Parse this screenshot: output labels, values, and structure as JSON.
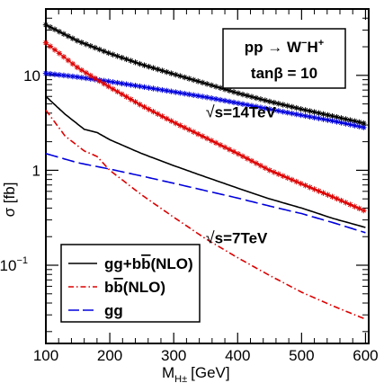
{
  "chart_data": {
    "type": "line",
    "xlabel": "M",
    "xlabel_sub": "H±",
    "xlabel_unit": "[GeV]",
    "ylabel": "σ [fb]",
    "xlim": [
      100,
      605
    ],
    "ylim": [
      0.015,
      50
    ],
    "yscale": "log",
    "x_ticks": [
      "100",
      "200",
      "300",
      "400",
      "500",
      "600"
    ],
    "y_ticks": [
      {
        "value": 10,
        "label": "10"
      },
      {
        "value": 1,
        "label": "1"
      },
      {
        "value": 0.1,
        "label": "10",
        "sup": "−1"
      }
    ],
    "process_box": {
      "line1": "pp → W",
      "line1_sup1": "−",
      "line1_mid": "H",
      "line1_sup2": "+",
      "line2": "tanβ = 10"
    },
    "energy_labels": [
      {
        "root": "√",
        "text": "s=14TeV",
        "x": 350,
        "y": 3.6
      },
      {
        "root": "√",
        "text": "s=7TeV",
        "x": 350,
        "y": 0.17
      }
    ],
    "legend": {
      "placement": "bottom-left",
      "entries": [
        {
          "label": "gg+b",
          "bar": "b",
          "suffix": "(NLO)",
          "style": "solid",
          "color": "#000000"
        },
        {
          "label": "b",
          "bar": "b",
          "suffix": "(NLO)",
          "style": "dashdot",
          "color": "#dd0000"
        },
        {
          "label": "gg",
          "bar": "",
          "suffix": "",
          "style": "dashed",
          "color": "#0000dd"
        }
      ]
    },
    "series": [
      {
        "key": "tot14",
        "color": "#000000",
        "style": "solid-marker",
        "marker": "star",
        "x": [
          100,
          150,
          200,
          250,
          300,
          350,
          400,
          450,
          500,
          550,
          600
        ],
        "y": [
          34,
          23,
          17,
          13,
          10.3,
          8.2,
          6.5,
          5.3,
          4.4,
          3.7,
          3.1
        ]
      },
      {
        "key": "gg14",
        "color": "#0000dd",
        "style": "solid-marker",
        "marker": "star",
        "x": [
          100,
          150,
          200,
          250,
          300,
          350,
          400,
          450,
          500,
          550,
          600
        ],
        "y": [
          10.5,
          9.6,
          8.6,
          7.6,
          6.7,
          5.9,
          5.1,
          4.4,
          3.8,
          3.3,
          2.8
        ]
      },
      {
        "key": "bb14",
        "color": "#dd0000",
        "style": "solid-marker",
        "marker": "star",
        "x": [
          100,
          150,
          200,
          250,
          300,
          350,
          400,
          450,
          500,
          550,
          600
        ],
        "y": [
          22,
          12,
          7.5,
          4.8,
          3.2,
          2.2,
          1.5,
          1.0,
          0.72,
          0.52,
          0.37
        ]
      },
      {
        "key": "tot7",
        "color": "#000000",
        "style": "solid",
        "marker": "",
        "x": [
          100,
          130,
          160,
          180,
          200,
          250,
          300,
          350,
          400,
          450,
          500,
          550,
          600
        ],
        "y": [
          6.0,
          3.9,
          2.7,
          2.5,
          2.1,
          1.5,
          1.12,
          0.85,
          0.65,
          0.5,
          0.4,
          0.31,
          0.25
        ]
      },
      {
        "key": "bb7",
        "color": "#dd0000",
        "style": "dashdot",
        "marker": "",
        "x": [
          100,
          130,
          160,
          180,
          200,
          250,
          300,
          350,
          400,
          450,
          500,
          550,
          600
        ],
        "y": [
          4.3,
          2.3,
          1.6,
          1.4,
          1.0,
          0.55,
          0.32,
          0.19,
          0.12,
          0.078,
          0.052,
          0.037,
          0.027
        ]
      },
      {
        "key": "gg7",
        "color": "#0000dd",
        "style": "dashed",
        "marker": "",
        "x": [
          100,
          150,
          200,
          250,
          300,
          350,
          400,
          450,
          500,
          550,
          600
        ],
        "y": [
          1.5,
          1.2,
          1.03,
          0.87,
          0.73,
          0.61,
          0.51,
          0.42,
          0.35,
          0.28,
          0.22
        ]
      }
    ]
  }
}
